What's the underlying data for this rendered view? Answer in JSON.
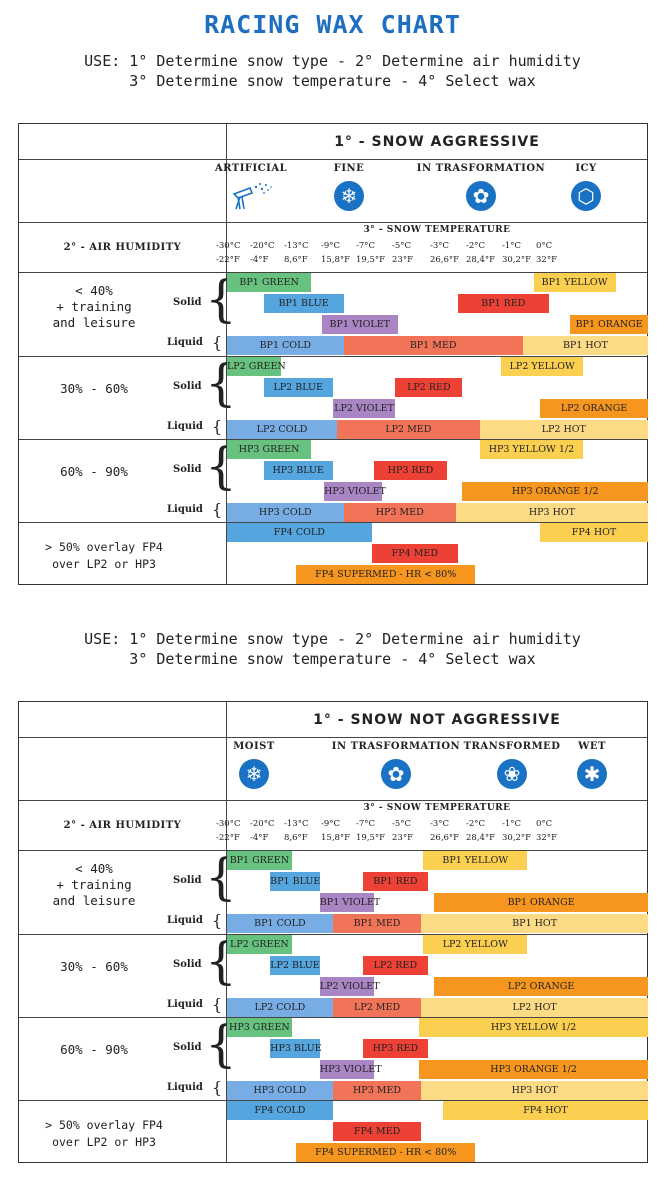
{
  "title": "RACING WAX CHART",
  "use_line1": "USE: 1° Determine snow type - 2° Determine air humidity",
  "use_line2": "3° Determine snow temperature -  4° Select wax",
  "colors": {
    "title_blue": "#1f6fc0",
    "icon_blue": "#1a72c4",
    "green": "#67c17f",
    "blue": "#55a6df",
    "red": "#ee4135",
    "violet": "#a985c4",
    "yellow": "#fbd050",
    "orange": "#f6961f",
    "cold": "#77ade4",
    "med": "#f27458",
    "hot": "#fddb85"
  },
  "temps": {
    "heading": "3° - SNOW TEMPERATURE",
    "celsius": [
      "-30°C",
      "-20°C",
      "-13°C",
      "-9°C",
      "-7°C",
      "-5°C",
      "-3°C",
      "-2°C",
      "-1°C",
      "0°C"
    ],
    "fahrenheit": [
      "-22°F",
      "-4°F",
      "8,6°F",
      "15,8°F",
      "19,5°F",
      "23°F",
      "26,6°F",
      "28,4°F",
      "30,2°F",
      "32°F"
    ]
  },
  "air_humidity": "2° - AIR HUMIDITY",
  "solid_label": "Solid",
  "liquid_label": "Liquid",
  "panels": [
    {
      "snow_title": "1° - SNOW AGGRESSIVE",
      "snow_types": [
        {
          "label": "ARTIFICIAL",
          "icon": "snow-gun-icon"
        },
        {
          "label": "FINE",
          "icon": "snowflake-icon"
        },
        {
          "label": "IN TRASFORMATION",
          "icon": "flower-icon"
        },
        {
          "label": "ICY",
          "icon": "ice-icon"
        }
      ],
      "groups": [
        {
          "humidity": [
            "< 40%",
            "+ training",
            "and leisure"
          ],
          "solid": [
            [
              {
                "label": "BP1 GREEN",
                "color": "green",
                "from": 0,
                "to": 1.95
              },
              {
                "label": "BP1 YELLOW",
                "color": "yellow",
                "from": 7.1,
                "to": 9.0
              }
            ],
            [
              {
                "label": "BP1 BLUE",
                "color": "blue",
                "from": 0.85,
                "to": 2.7
              },
              {
                "label": "BP1 RED",
                "color": "red",
                "from": 5.35,
                "to": 7.45
              }
            ],
            [
              {
                "label": "BP1 VIOLET",
                "color": "violet",
                "from": 2.2,
                "to": 3.95
              },
              {
                "label": "BP1 ORANGE",
                "color": "orange",
                "from": 7.95,
                "to": 9.75
              }
            ]
          ],
          "liquid": [
            {
              "label": "BP1 COLD",
              "color": "cold",
              "from": 0,
              "to": 2.7
            },
            {
              "label": "BP1 MED",
              "color": "med",
              "from": 2.7,
              "to": 6.85
            },
            {
              "label": "BP1 HOT",
              "color": "hot",
              "from": 6.85,
              "to": 9.75
            }
          ]
        },
        {
          "humidity": [
            "30% - 60%"
          ],
          "solid": [
            [
              {
                "label": "LP2 GREEN",
                "color": "green",
                "from": 0,
                "to": 1.25
              },
              {
                "label": "LP2 YELLOW",
                "color": "yellow",
                "from": 6.35,
                "to": 8.25
              }
            ],
            [
              {
                "label": "LP2 BLUE",
                "color": "blue",
                "from": 0.85,
                "to": 2.45
              },
              {
                "label": "LP2 RED",
                "color": "red",
                "from": 3.9,
                "to": 5.45
              }
            ],
            [
              {
                "label": "LP2 VIOLET",
                "color": "violet",
                "from": 2.45,
                "to": 3.9
              },
              {
                "label": "LP2 ORANGE",
                "color": "orange",
                "from": 7.25,
                "to": 9.75
              }
            ]
          ],
          "liquid": [
            {
              "label": "LP2 COLD",
              "color": "cold",
              "from": 0,
              "to": 2.55
            },
            {
              "label": "LP2 MED",
              "color": "med",
              "from": 2.55,
              "to": 5.85
            },
            {
              "label": "LP2 HOT",
              "color": "hot",
              "from": 5.85,
              "to": 9.75
            }
          ]
        },
        {
          "humidity": [
            "60% - 90%"
          ],
          "solid": [
            [
              {
                "label": "HP3 GREEN",
                "color": "green",
                "from": 0,
                "to": 1.95
              },
              {
                "label": "HP3 YELLOW 1/2",
                "color": "yellow",
                "from": 5.85,
                "to": 8.25
              }
            ],
            [
              {
                "label": "HP3 BLUE",
                "color": "blue",
                "from": 0.85,
                "to": 2.45
              },
              {
                "label": "HP3 RED",
                "color": "red",
                "from": 3.4,
                "to": 5.1
              }
            ],
            [
              {
                "label": "HP3 VIOLET",
                "color": "violet",
                "from": 2.25,
                "to": 3.6
              },
              {
                "label": "HP3 ORANGE 1/2",
                "color": "orange",
                "from": 5.45,
                "to": 9.75
              }
            ]
          ],
          "liquid": [
            {
              "label": "HP3 COLD",
              "color": "cold",
              "from": 0,
              "to": 2.7
            },
            {
              "label": "HP3 MED",
              "color": "med",
              "from": 2.7,
              "to": 5.3
            },
            {
              "label": "HP3 HOT",
              "color": "hot",
              "from": 5.3,
              "to": 9.75
            }
          ]
        }
      ],
      "overlay": {
        "text": [
          "> 50% overlay FP4",
          "over LP2 or HP3"
        ],
        "rows": [
          [
            {
              "label": "FP4 COLD",
              "color": "blue",
              "from": 0,
              "to": 3.35
            },
            {
              "label": "FP4 HOT",
              "color": "yellow",
              "from": 7.25,
              "to": 9.75
            }
          ],
          [
            {
              "label": "FP4 MED",
              "color": "red",
              "from": 3.35,
              "to": 5.35
            }
          ],
          [
            {
              "label": "FP4 SUPERMED - HR < 80%",
              "color": "orange",
              "from": 1.6,
              "to": 5.75
            }
          ]
        ]
      }
    },
    {
      "snow_title": "1° - SNOW NOT AGGRESSIVE",
      "snow_types": [
        {
          "label": "MOIST",
          "icon": "snowflake-icon"
        },
        {
          "label": "IN TRASFORMATION",
          "icon": "flower-icon"
        },
        {
          "label": "TRANSFORMED",
          "icon": "rosette-icon"
        },
        {
          "label": "WET",
          "icon": "water-drop-icon"
        }
      ],
      "groups": [
        {
          "humidity": [
            "< 40%",
            "+ training",
            "and leisure"
          ],
          "solid": [
            [
              {
                "label": "BP1 GREEN",
                "color": "green",
                "from": 0,
                "to": 1.5
              },
              {
                "label": "BP1 YELLOW",
                "color": "yellow",
                "from": 4.55,
                "to": 6.95
              }
            ],
            [
              {
                "label": "BP1 BLUE",
                "color": "blue",
                "from": 1.0,
                "to": 2.15
              },
              {
                "label": "BP1 RED",
                "color": "red",
                "from": 3.15,
                "to": 4.65
              }
            ],
            [
              {
                "label": "BP1 VIOLET",
                "color": "violet",
                "from": 2.15,
                "to": 3.4
              },
              {
                "label": "BP1 ORANGE",
                "color": "orange",
                "from": 4.8,
                "to": 9.75
              }
            ]
          ],
          "liquid": [
            {
              "label": "BP1 COLD",
              "color": "cold",
              "from": 0,
              "to": 2.45
            },
            {
              "label": "BP1 MED",
              "color": "med",
              "from": 2.45,
              "to": 4.5
            },
            {
              "label": "BP1 HOT",
              "color": "hot",
              "from": 4.5,
              "to": 9.75
            }
          ]
        },
        {
          "humidity": [
            "30% - 60%"
          ],
          "solid": [
            [
              {
                "label": "LP2 GREEN",
                "color": "green",
                "from": 0,
                "to": 1.5
              },
              {
                "label": "LP2 YELLOW",
                "color": "yellow",
                "from": 4.55,
                "to": 6.95
              }
            ],
            [
              {
                "label": "LP2 BLUE",
                "color": "blue",
                "from": 1.0,
                "to": 2.15
              },
              {
                "label": "LP2 RED",
                "color": "red",
                "from": 3.15,
                "to": 4.65
              }
            ],
            [
              {
                "label": "LP2 VIOLET",
                "color": "violet",
                "from": 2.15,
                "to": 3.4
              },
              {
                "label": "LP2 ORANGE",
                "color": "orange",
                "from": 4.8,
                "to": 9.75
              }
            ]
          ],
          "liquid": [
            {
              "label": "LP2 COLD",
              "color": "cold",
              "from": 0,
              "to": 2.45
            },
            {
              "label": "LP2 MED",
              "color": "med",
              "from": 2.45,
              "to": 4.5
            },
            {
              "label": "LP2 HOT",
              "color": "hot",
              "from": 4.5,
              "to": 9.75
            }
          ]
        },
        {
          "humidity": [
            "60% - 90%"
          ],
          "solid": [
            [
              {
                "label": "HP3 GREEN",
                "color": "green",
                "from": 0,
                "to": 1.5
              },
              {
                "label": "HP3 YELLOW 1/2",
                "color": "yellow",
                "from": 4.45,
                "to": 9.75
              }
            ],
            [
              {
                "label": "HP3 BLUE",
                "color": "blue",
                "from": 1.0,
                "to": 2.15
              },
              {
                "label": "HP3 RED",
                "color": "red",
                "from": 3.15,
                "to": 4.65
              }
            ],
            [
              {
                "label": "HP3 VIOLET",
                "color": "violet",
                "from": 2.15,
                "to": 3.4
              },
              {
                "label": "HP3 ORANGE 1/2",
                "color": "orange",
                "from": 4.45,
                "to": 9.75
              }
            ]
          ],
          "liquid": [
            {
              "label": "HP3 COLD",
              "color": "cold",
              "from": 0,
              "to": 2.45
            },
            {
              "label": "HP3 MED",
              "color": "med",
              "from": 2.45,
              "to": 4.5
            },
            {
              "label": "HP3 HOT",
              "color": "hot",
              "from": 4.5,
              "to": 9.75
            }
          ]
        }
      ],
      "overlay": {
        "text": [
          "> 50% overlay FP4",
          "over LP2 or HP3"
        ],
        "rows": [
          [
            {
              "label": "FP4 COLD",
              "color": "blue",
              "from": 0,
              "to": 2.45
            },
            {
              "label": "FP4 HOT",
              "color": "yellow",
              "from": 5.0,
              "to": 9.75
            }
          ],
          [
            {
              "label": "FP4 MED",
              "color": "red",
              "from": 2.45,
              "to": 4.5
            }
          ],
          [
            {
              "label": "FP4 SUPERMED - HR < 80%",
              "color": "orange",
              "from": 1.6,
              "to": 5.75
            }
          ]
        ]
      }
    }
  ]
}
